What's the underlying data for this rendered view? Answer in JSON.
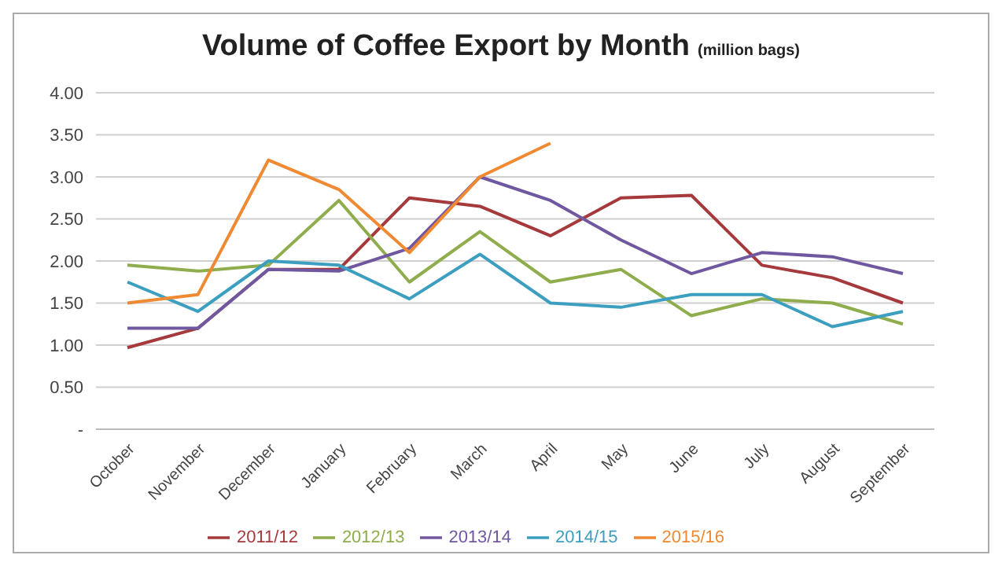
{
  "chart_data": {
    "type": "line",
    "title": "Volume of Coffee Export by Month",
    "subtitle": "(million bags)",
    "categories": [
      "October",
      "November",
      "December",
      "January",
      "February",
      "March",
      "April",
      "May",
      "June",
      "July",
      "August",
      "September"
    ],
    "series": [
      {
        "name": "2011/12",
        "color": "#a5393b",
        "values": [
          0.97,
          1.2,
          1.9,
          1.9,
          2.75,
          2.65,
          2.3,
          2.75,
          2.78,
          1.95,
          1.8,
          1.5
        ]
      },
      {
        "name": "2012/13",
        "color": "#8fad4c",
        "values": [
          1.95,
          1.88,
          1.95,
          2.72,
          1.75,
          2.35,
          1.75,
          1.9,
          1.35,
          1.55,
          1.5,
          1.25
        ]
      },
      {
        "name": "2013/14",
        "color": "#7058a0",
        "values": [
          1.2,
          1.2,
          1.9,
          1.88,
          2.15,
          3.0,
          2.72,
          2.25,
          1.85,
          2.1,
          2.05,
          1.85
        ]
      },
      {
        "name": "2014/15",
        "color": "#3c9fc0",
        "values": [
          1.75,
          1.4,
          2.0,
          1.95,
          1.55,
          2.08,
          1.5,
          1.45,
          1.6,
          1.6,
          1.22,
          1.4
        ]
      },
      {
        "name": "2015/16",
        "color": "#ef8a32",
        "values": [
          1.5,
          1.6,
          3.2,
          2.85,
          2.1,
          3.0,
          3.4,
          null,
          null,
          null,
          null,
          null
        ]
      }
    ],
    "ylim": [
      0,
      4
    ],
    "yticks": [
      {
        "value": 0,
        "label": "-"
      },
      {
        "value": 0.5,
        "label": "0.50"
      },
      {
        "value": 1,
        "label": "1.00"
      },
      {
        "value": 1.5,
        "label": "1.50"
      },
      {
        "value": 2,
        "label": "2.00"
      },
      {
        "value": 2.5,
        "label": "2.50"
      },
      {
        "value": 3,
        "label": "3.00"
      },
      {
        "value": 3.5,
        "label": "3.50"
      },
      {
        "value": 4,
        "label": "4.00"
      }
    ],
    "grid": "y",
    "legend": "bottom",
    "marker": "none",
    "line_style": "solid"
  }
}
